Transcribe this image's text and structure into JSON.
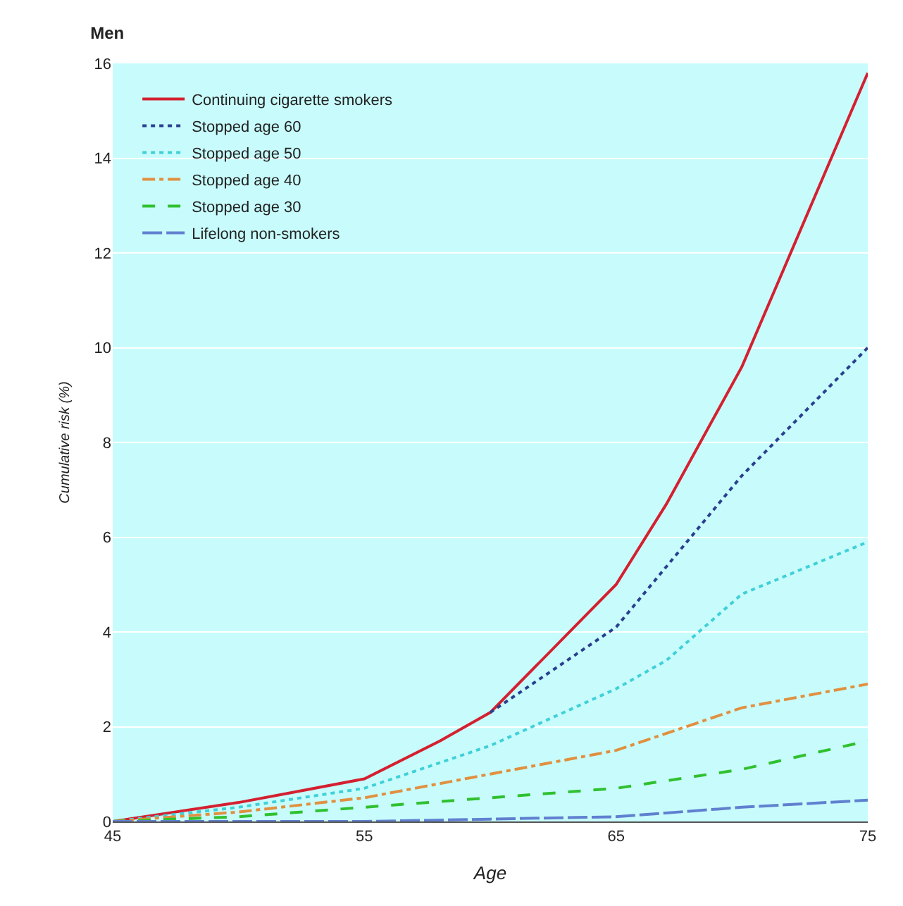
{
  "chart_data": {
    "type": "line",
    "title": "Men",
    "xlabel": "Age",
    "ylabel": "Cumulative risk (%)",
    "xlim": [
      45,
      75
    ],
    "xticks": [
      45,
      55,
      65,
      75
    ],
    "ylim": [
      0,
      16
    ],
    "yticks": [
      0,
      2,
      4,
      6,
      8,
      10,
      12,
      14,
      16
    ],
    "grid": "y",
    "legend": "top left",
    "marker": "none",
    "series": [
      {
        "name": "Continuing cigarette smokers",
        "color": "#d42030",
        "line_style": "solid",
        "x": [
          45,
          50,
          52,
          55,
          58,
          60,
          65,
          67,
          70,
          75
        ],
        "values": [
          0,
          0.4,
          0.6,
          0.9,
          1.7,
          2.3,
          5.0,
          6.7,
          9.6,
          15.8
        ]
      },
      {
        "name": "Stopped age 60",
        "color": "#2a3f8f",
        "line_style": "dotted",
        "x": [
          60,
          65,
          70,
          75
        ],
        "values": [
          2.3,
          4.1,
          7.3,
          10.0
        ]
      },
      {
        "name": "Stopped age 50",
        "color": "#40d0d8",
        "line_style": "dotted",
        "x": [
          45,
          50,
          55,
          60,
          65,
          67,
          70,
          75
        ],
        "values": [
          0,
          0.3,
          0.7,
          1.6,
          2.8,
          3.4,
          4.8,
          5.9
        ]
      },
      {
        "name": "Stopped age 40",
        "color": "#e09040",
        "line_style": "dashdot",
        "x": [
          45,
          50,
          55,
          60,
          65,
          70,
          75
        ],
        "values": [
          0,
          0.2,
          0.5,
          1.0,
          1.5,
          2.4,
          2.9
        ]
      },
      {
        "name": "Stopped age 30",
        "color": "#30c030",
        "line_style": "dashed",
        "x": [
          45,
          50,
          55,
          60,
          65,
          70,
          75
        ],
        "values": [
          0,
          0.1,
          0.3,
          0.5,
          0.7,
          1.1,
          1.7
        ]
      },
      {
        "name": "Lifelong non-smokers",
        "color": "#6080d0",
        "line_style": "longdash",
        "x": [
          45,
          55,
          60,
          65,
          70,
          75
        ],
        "values": [
          0,
          0,
          0.05,
          0.1,
          0.3,
          0.45
        ]
      }
    ]
  }
}
